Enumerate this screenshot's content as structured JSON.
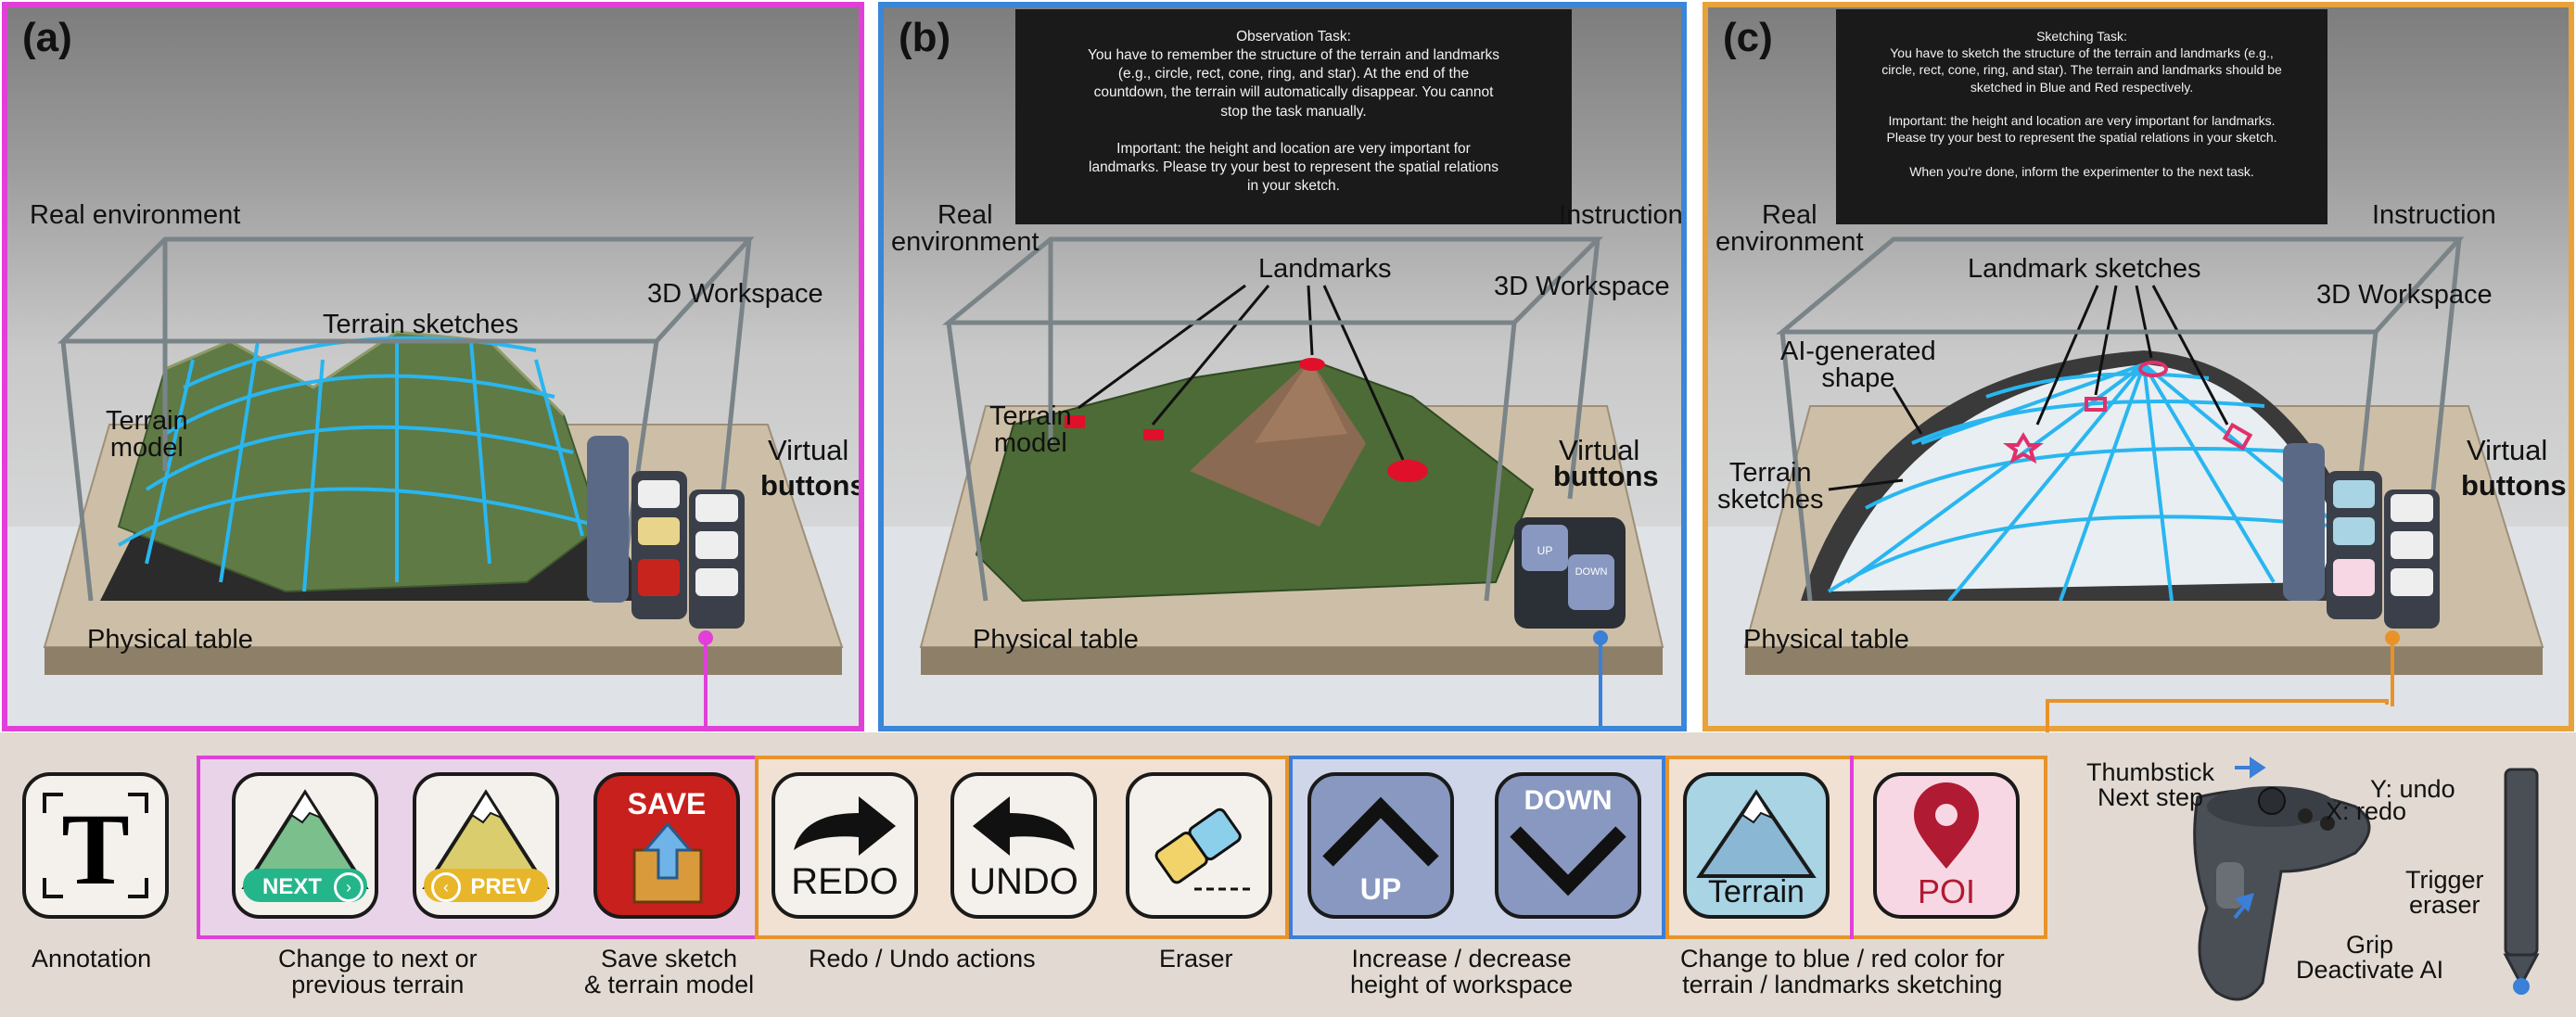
{
  "panels": {
    "a": {
      "label": "(a)",
      "real_environment": "Real environment",
      "terrain_sketches": "Terrain sketches",
      "workspace": "3D Workspace",
      "terrain_model": "Terrain\nmodel",
      "virtual_buttons_1": "Virtual",
      "virtual_buttons_2": "buttons",
      "physical_table": "Physical table",
      "mini_buttons": [
        "NEXT",
        "PREV",
        "SAVE",
        "REDO",
        "UNDO"
      ]
    },
    "b": {
      "label": "(b)",
      "real_environment": "Real\nenvironment",
      "instruction": "Instruction",
      "landmarks": "Landmarks",
      "workspace": "3D Workspace",
      "terrain_model": "Terrain\nmodel",
      "virtual_buttons_1": "Virtual",
      "virtual_buttons_2": "buttons",
      "physical_table": "Physical table",
      "mini_buttons": [
        "UP",
        "DOWN"
      ],
      "instruction_text": "Observation Task:\nYou have to remember the structure of the terrain and landmarks\n(e.g., circle, rect, cone, ring, and star). At the end of the\ncountdown, the terrain will automatically disappear. You cannot\nstop the task manually.\n\nImportant: the height and location are very important for\nlandmarks. Please try your best to represent the spatial relations\nin your sketch."
    },
    "c": {
      "label": "(c)",
      "real_environment": "Real\nenvironment",
      "instruction": "Instruction",
      "landmark_sketches": "Landmark sketches",
      "workspace": "3D Workspace",
      "ai_shape": "AI-generated\nshape",
      "terrain_sketches": "Terrain\nsketches",
      "virtual_buttons_1": "Virtual",
      "virtual_buttons_2": "buttons",
      "physical_table": "Physical table",
      "mini_buttons": [
        "REDO",
        "UNDO",
        "Terrain",
        "POI"
      ],
      "instruction_text": "Sketching Task:\nYou have to sketch the structure of the terrain and landmarks (e.g.,\ncircle, rect, cone, ring, and star). The terrain and landmarks should be\nsketched in Blue and Red respectively.\n\nImportant: the height and location are very important for landmarks.\nPlease try your best to represent the spatial relations in your sketch.\n\nWhen you're done, inform the experimenter to the next task."
    }
  },
  "legend": {
    "annotation_glyph": "T",
    "annotation": "Annotation",
    "next": "NEXT",
    "prev": "PREV",
    "save": "SAVE",
    "redo": "REDO",
    "undo": "UNDO",
    "up": "UP",
    "down": "DOWN",
    "terrain": "Terrain",
    "poi": "POI",
    "cap_change_terrain": "Change to next or\nprevious terrain",
    "cap_save": "Save sketch\n& terrain model",
    "cap_redo_undo": "Redo / Undo actions",
    "cap_eraser": "Eraser",
    "cap_height": "Increase / decrease\nheight of workspace",
    "cap_color": "Change to blue / red color for\nterrain / landmarks sketching"
  },
  "controller": {
    "thumbstick": "Thumbstick\nNext step",
    "y_undo": "Y: undo",
    "x_redo": "X: redo",
    "trigger": "Trigger\neraser",
    "grip": "Grip\nDeactivate AI"
  },
  "colors": {
    "panel_a": "#e040d8",
    "panel_b": "#3a86d8",
    "panel_c": "#e8a23a",
    "sketch_blue": "#29b6f0",
    "landmark_red": "#e0102a",
    "group_magenta": "#e040d8",
    "group_orange": "#e8932a",
    "group_blue": "#3a7fd8"
  }
}
